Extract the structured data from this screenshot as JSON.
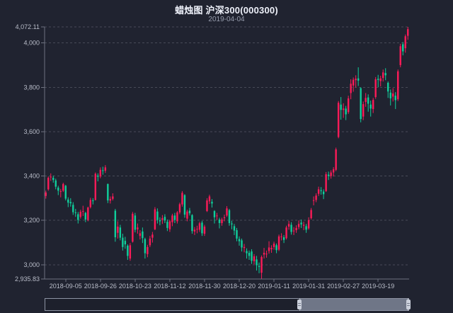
{
  "title": {
    "text": "蜡烛图 沪深300(000300)",
    "subtitle": "2019-04-04"
  },
  "colors": {
    "background": "#202330",
    "up": "#fb1b58",
    "down": "#10ce9b",
    "grid": "#474a57",
    "axis": "#6e7280",
    "label": "#b9bdc9",
    "title_text": "#eef1fa",
    "subtitle_text": "#989eae",
    "zoom_selected": "#6f7687",
    "zoom_handle": "#ccd1dc",
    "zoom_border": "#8d93a3"
  },
  "y_axis": {
    "tick_labels": [
      {
        "label": "4,072.11",
        "value": 4072.11
      },
      {
        "label": "4,000",
        "value": 4000
      },
      {
        "label": "3,800",
        "value": 3800
      },
      {
        "label": "3,600",
        "value": 3600
      },
      {
        "label": "3,400",
        "value": 3400
      },
      {
        "label": "3,200",
        "value": 3200
      },
      {
        "label": "3,000",
        "value": 3000
      },
      {
        "label": "2,935.83",
        "value": 2935.83
      }
    ],
    "gridline_values": [
      4072.11,
      4000,
      3800,
      3600,
      3400,
      3200,
      3000
    ]
  },
  "x_axis": {
    "tick_labels": [
      "2018-09-05",
      "2018-09-26",
      "2018-10-23",
      "2018-11-12",
      "2018-11-30",
      "2018-12-20",
      "2019-01-11",
      "2019-01-31",
      "2019-02-27",
      "2019-03-19"
    ],
    "first_label_index": 8,
    "label_every": 14
  },
  "data_zoom": {
    "start_pct": 70,
    "end_pct": 100
  },
  "chart_data": {
    "type": "candlestick",
    "title": "蜡烛图 沪深300(000300)",
    "series_name": "沪深300",
    "columns": [
      "date",
      "open",
      "close",
      "low",
      "high"
    ],
    "up_color": "#fb1b58",
    "down_color": "#10ce9b",
    "ylim": [
      2935.83,
      4072.11
    ],
    "data": [
      [
        "2018-08-24",
        3310,
        3326,
        3298,
        3334
      ],
      [
        "2018-08-27",
        3340,
        3392,
        3334,
        3398
      ],
      [
        "2018-08-28",
        3395,
        3397,
        3378,
        3412
      ],
      [
        "2018-08-29",
        3392,
        3382,
        3370,
        3402
      ],
      [
        "2018-08-30",
        3380,
        3352,
        3340,
        3388
      ],
      [
        "2018-08-31",
        3348,
        3334,
        3314,
        3356
      ],
      [
        "2018-09-03",
        3330,
        3332,
        3304,
        3342
      ],
      [
        "2018-09-04",
        3334,
        3364,
        3328,
        3370
      ],
      [
        "2018-09-05",
        3356,
        3298,
        3290,
        3360
      ],
      [
        "2018-09-06",
        3294,
        3280,
        3260,
        3304
      ],
      [
        "2018-09-07",
        3283,
        3277,
        3262,
        3300
      ],
      [
        "2018-09-10",
        3270,
        3237,
        3225,
        3282
      ],
      [
        "2018-09-11",
        3236,
        3233,
        3216,
        3252
      ],
      [
        "2018-09-12",
        3228,
        3202,
        3186,
        3238
      ],
      [
        "2018-09-13",
        3216,
        3239,
        3208,
        3248
      ],
      [
        "2018-09-14",
        3242,
        3242,
        3220,
        3266
      ],
      [
        "2018-09-17",
        3234,
        3204,
        3192,
        3238
      ],
      [
        "2018-09-18",
        3202,
        3258,
        3196,
        3262
      ],
      [
        "2018-09-19",
        3260,
        3292,
        3254,
        3302
      ],
      [
        "2018-09-20",
        3290,
        3288,
        3272,
        3300
      ],
      [
        "2018-09-21",
        3292,
        3410,
        3290,
        3416
      ],
      [
        "2018-09-25",
        3402,
        3397,
        3376,
        3412
      ],
      [
        "2018-09-26",
        3398,
        3428,
        3390,
        3439
      ],
      [
        "2018-09-27",
        3426,
        3423,
        3406,
        3442
      ],
      [
        "2018-09-28",
        3424,
        3439,
        3414,
        3449
      ],
      [
        "2018-10-08",
        3364,
        3290,
        3278,
        3366
      ],
      [
        "2018-10-09",
        3289,
        3297,
        3276,
        3308
      ],
      [
        "2018-10-10",
        3297,
        3308,
        3290,
        3322
      ],
      [
        "2018-10-11",
        3244,
        3124,
        3104,
        3252
      ],
      [
        "2018-10-12",
        3144,
        3172,
        3118,
        3196
      ],
      [
        "2018-10-15",
        3168,
        3122,
        3110,
        3180
      ],
      [
        "2018-10-16",
        3122,
        3080,
        3064,
        3140
      ],
      [
        "2018-10-17",
        3108,
        3092,
        3072,
        3126
      ],
      [
        "2018-10-18",
        3086,
        3040,
        3022,
        3092
      ],
      [
        "2018-10-19",
        3028,
        3088,
        3018,
        3098
      ],
      [
        "2018-10-22",
        3104,
        3230,
        3100,
        3238
      ],
      [
        "2018-10-23",
        3222,
        3158,
        3146,
        3234
      ],
      [
        "2018-10-24",
        3160,
        3168,
        3140,
        3186
      ],
      [
        "2018-10-25",
        3130,
        3142,
        3114,
        3156
      ],
      [
        "2018-10-26",
        3150,
        3120,
        3098,
        3168
      ],
      [
        "2018-10-29",
        3116,
        3052,
        3028,
        3122
      ],
      [
        "2018-10-30",
        3048,
        3080,
        3034,
        3090
      ],
      [
        "2018-10-31",
        3088,
        3118,
        3080,
        3130
      ],
      [
        "2018-11-01",
        3122,
        3136,
        3100,
        3148
      ],
      [
        "2018-11-02",
        3160,
        3250,
        3156,
        3260
      ],
      [
        "2018-11-05",
        3240,
        3202,
        3186,
        3254
      ],
      [
        "2018-11-06",
        3200,
        3196,
        3178,
        3214
      ],
      [
        "2018-11-07",
        3202,
        3210,
        3184,
        3224
      ],
      [
        "2018-11-08",
        3216,
        3200,
        3188,
        3228
      ],
      [
        "2018-11-09",
        3194,
        3166,
        3152,
        3204
      ],
      [
        "2018-11-12",
        3160,
        3196,
        3148,
        3202
      ],
      [
        "2018-11-13",
        3192,
        3222,
        3174,
        3230
      ],
      [
        "2018-11-14",
        3222,
        3202,
        3188,
        3234
      ],
      [
        "2018-11-15",
        3196,
        3236,
        3186,
        3242
      ],
      [
        "2018-11-16",
        3236,
        3273,
        3228,
        3280
      ],
      [
        "2018-11-19",
        3272,
        3324,
        3262,
        3332
      ],
      [
        "2018-11-20",
        3314,
        3226,
        3212,
        3318
      ],
      [
        "2018-11-21",
        3208,
        3240,
        3196,
        3248
      ],
      [
        "2018-11-22",
        3244,
        3232,
        3222,
        3256
      ],
      [
        "2018-11-23",
        3224,
        3152,
        3140,
        3228
      ],
      [
        "2018-11-26",
        3150,
        3158,
        3134,
        3170
      ],
      [
        "2018-11-27",
        3160,
        3162,
        3142,
        3176
      ],
      [
        "2018-11-28",
        3158,
        3187,
        3148,
        3194
      ],
      [
        "2018-11-29",
        3190,
        3142,
        3130,
        3198
      ],
      [
        "2018-11-30",
        3140,
        3172,
        3130,
        3180
      ],
      [
        "2018-12-03",
        3242,
        3290,
        3238,
        3300
      ],
      [
        "2018-12-04",
        3286,
        3308,
        3274,
        3316
      ],
      [
        "2018-12-05",
        3284,
        3276,
        3258,
        3296
      ],
      [
        "2018-12-06",
        3242,
        3214,
        3186,
        3246
      ],
      [
        "2018-12-07",
        3220,
        3222,
        3202,
        3234
      ],
      [
        "2018-12-10",
        3204,
        3188,
        3164,
        3212
      ],
      [
        "2018-12-11",
        3188,
        3204,
        3176,
        3212
      ],
      [
        "2018-12-12",
        3210,
        3214,
        3196,
        3226
      ],
      [
        "2018-12-13",
        3222,
        3254,
        3216,
        3264
      ],
      [
        "2018-12-14",
        3246,
        3188,
        3176,
        3252
      ],
      [
        "2018-12-17",
        3186,
        3182,
        3160,
        3198
      ],
      [
        "2018-12-18",
        3174,
        3154,
        3134,
        3184
      ],
      [
        "2018-12-19",
        3156,
        3118,
        3106,
        3166
      ],
      [
        "2018-12-20",
        3116,
        3106,
        3086,
        3128
      ],
      [
        "2018-12-21",
        3110,
        3078,
        3060,
        3118
      ],
      [
        "2018-12-24",
        3076,
        3080,
        3056,
        3094
      ],
      [
        "2018-12-25",
        3062,
        3052,
        3028,
        3074
      ],
      [
        "2018-12-26",
        3054,
        3040,
        3022,
        3064
      ],
      [
        "2018-12-27",
        3060,
        3018,
        3004,
        3070
      ],
      [
        "2018-12-28",
        3016,
        3038,
        3002,
        3048
      ],
      [
        "2019-01-02",
        3024,
        2998,
        2974,
        3040
      ],
      [
        "2019-01-03",
        2994,
        2990,
        2962,
        3010
      ],
      [
        "2019-01-04",
        2964,
        3035,
        2935.83,
        3042
      ],
      [
        "2019-01-07",
        3046,
        3054,
        3028,
        3076
      ],
      [
        "2019-01-08",
        3048,
        3050,
        3032,
        3064
      ],
      [
        "2019-01-09",
        3062,
        3078,
        3050,
        3106
      ],
      [
        "2019-01-10",
        3070,
        3076,
        3054,
        3088
      ],
      [
        "2019-01-11",
        3080,
        3095,
        3068,
        3104
      ],
      [
        "2019-01-14",
        3088,
        3066,
        3052,
        3096
      ],
      [
        "2019-01-15",
        3068,
        3128,
        3062,
        3136
      ],
      [
        "2019-01-16",
        3126,
        3128,
        3110,
        3142
      ],
      [
        "2019-01-17",
        3124,
        3112,
        3098,
        3134
      ],
      [
        "2019-01-18",
        3120,
        3168,
        3114,
        3176
      ],
      [
        "2019-01-21",
        3172,
        3184,
        3158,
        3198
      ],
      [
        "2019-01-22",
        3180,
        3148,
        3136,
        3192
      ],
      [
        "2019-01-23",
        3152,
        3154,
        3134,
        3170
      ],
      [
        "2019-01-24",
        3156,
        3166,
        3144,
        3178
      ],
      [
        "2019-01-25",
        3170,
        3184,
        3160,
        3200
      ],
      [
        "2019-01-28",
        3190,
        3182,
        3166,
        3204
      ],
      [
        "2019-01-29",
        3176,
        3180,
        3156,
        3194
      ],
      [
        "2019-01-30",
        3174,
        3158,
        3144,
        3184
      ],
      [
        "2019-01-31",
        3164,
        3201,
        3158,
        3214
      ],
      [
        "2019-02-01",
        3210,
        3247,
        3204,
        3256
      ],
      [
        "2019-02-11",
        3290,
        3291,
        3268,
        3308
      ],
      [
        "2019-02-12",
        3292,
        3312,
        3282,
        3322
      ],
      [
        "2019-02-13",
        3320,
        3340,
        3310,
        3352
      ],
      [
        "2019-02-14",
        3336,
        3332,
        3316,
        3350
      ],
      [
        "2019-02-15",
        3330,
        3318,
        3296,
        3340
      ],
      [
        "2019-02-18",
        3332,
        3408,
        3328,
        3418
      ],
      [
        "2019-02-19",
        3406,
        3400,
        3382,
        3420
      ],
      [
        "2019-02-20",
        3400,
        3416,
        3388,
        3426
      ],
      [
        "2019-02-21",
        3416,
        3430,
        3398,
        3440
      ],
      [
        "2019-02-22",
        3428,
        3520,
        3422,
        3528
      ],
      [
        "2019-02-25",
        3576,
        3730,
        3570,
        3738
      ],
      [
        "2019-02-26",
        3722,
        3698,
        3654,
        3756
      ],
      [
        "2019-02-27",
        3698,
        3704,
        3662,
        3728
      ],
      [
        "2019-02-28",
        3704,
        3678,
        3652,
        3716
      ],
      [
        "2019-03-01",
        3688,
        3750,
        3680,
        3762
      ],
      [
        "2019-03-04",
        3774,
        3816,
        3746,
        3836
      ],
      [
        "2019-03-05",
        3808,
        3834,
        3780,
        3844
      ],
      [
        "2019-03-06",
        3832,
        3839,
        3800,
        3854
      ],
      [
        "2019-03-07",
        3840,
        3830,
        3806,
        3890
      ],
      [
        "2019-03-08",
        3796,
        3657,
        3642,
        3800
      ],
      [
        "2019-03-11",
        3668,
        3724,
        3652,
        3736
      ],
      [
        "2019-03-12",
        3734,
        3752,
        3712,
        3774
      ],
      [
        "2019-03-13",
        3754,
        3726,
        3690,
        3768
      ],
      [
        "2019-03-14",
        3722,
        3704,
        3668,
        3740
      ],
      [
        "2019-03-15",
        3702,
        3743,
        3684,
        3752
      ],
      [
        "2019-03-18",
        3756,
        3836,
        3748,
        3846
      ],
      [
        "2019-03-19",
        3838,
        3833,
        3800,
        3856
      ],
      [
        "2019-03-20",
        3828,
        3840,
        3804,
        3852
      ],
      [
        "2019-03-21",
        3842,
        3867,
        3826,
        3880
      ],
      [
        "2019-03-22",
        3864,
        3854,
        3832,
        3886
      ],
      [
        "2019-03-25",
        3820,
        3781,
        3752,
        3826
      ],
      [
        "2019-03-26",
        3776,
        3750,
        3718,
        3790
      ],
      [
        "2019-03-27",
        3758,
        3772,
        3736,
        3796
      ],
      [
        "2019-03-28",
        3762,
        3742,
        3702,
        3778
      ],
      [
        "2019-03-29",
        3746,
        3872,
        3738,
        3880
      ],
      [
        "2019-04-01",
        3900,
        3985,
        3890,
        3996
      ],
      [
        "2019-04-02",
        3994,
        3962,
        3944,
        4004
      ],
      [
        "2019-04-03",
        3976,
        4030,
        3956,
        4038
      ],
      [
        "2019-04-04",
        4032,
        4062,
        4014,
        4072.11
      ]
    ]
  }
}
